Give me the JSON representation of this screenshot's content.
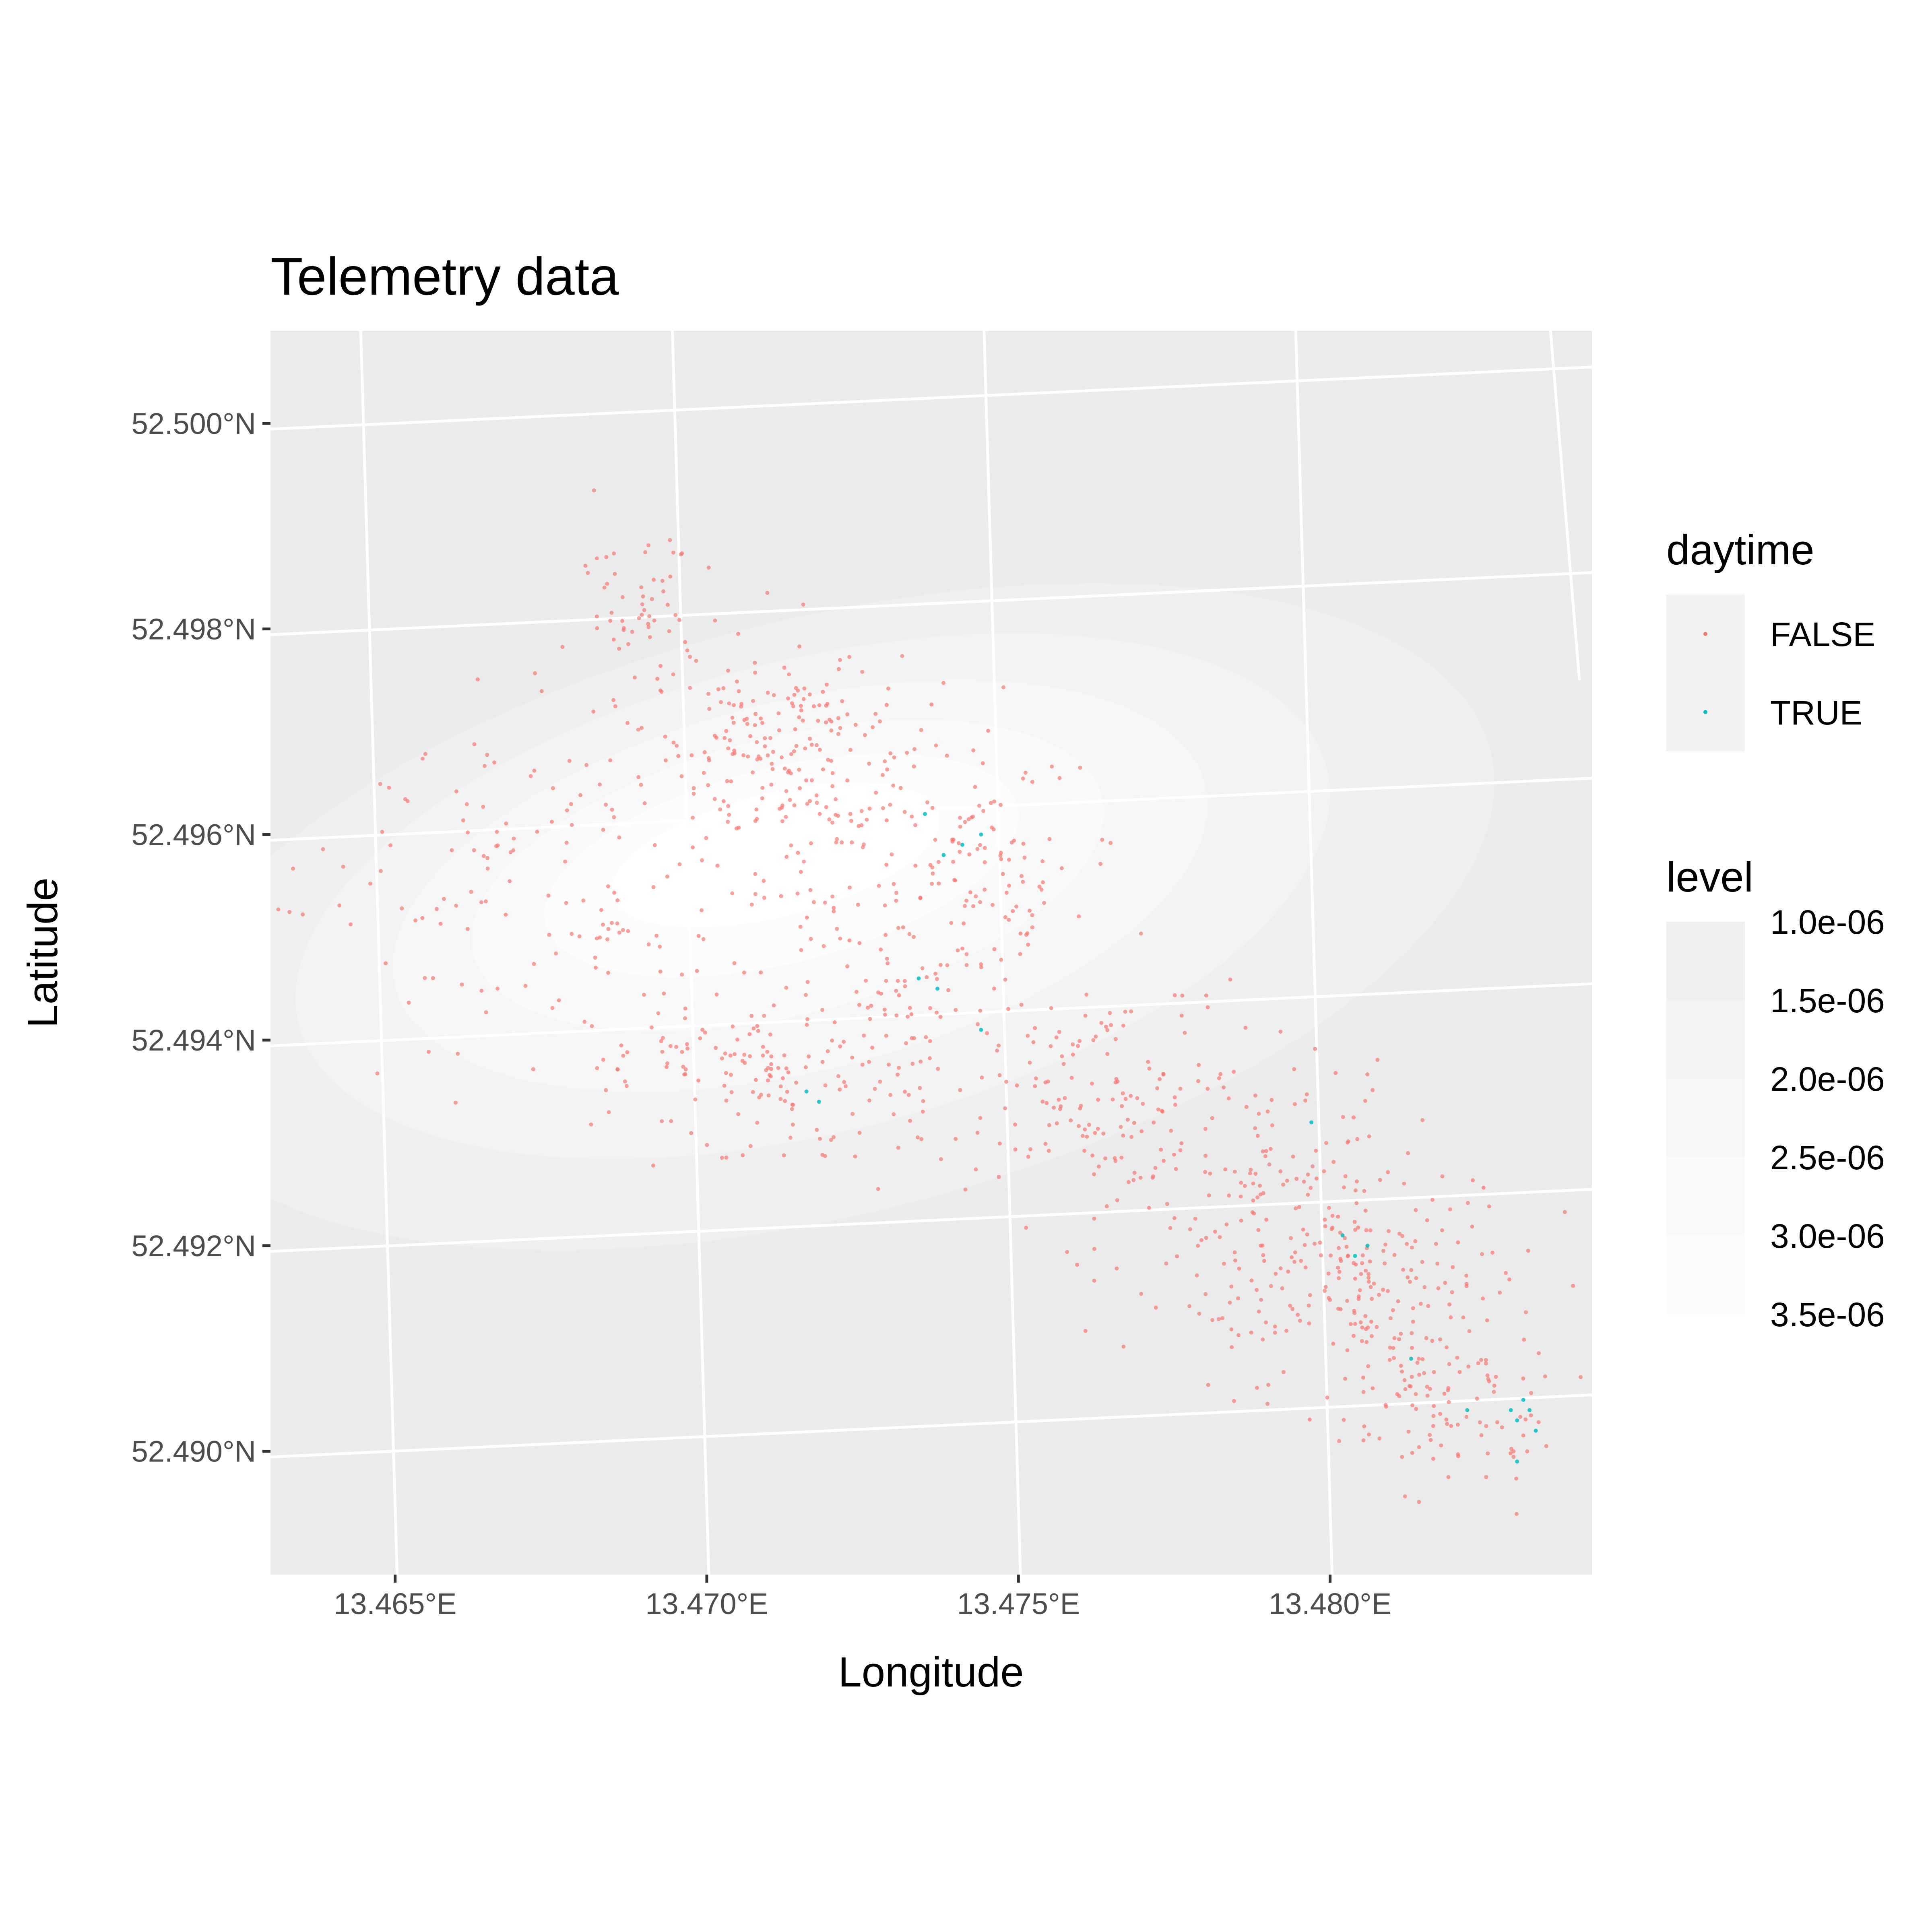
{
  "chart_data": {
    "type": "scatter",
    "title": "Telemetry data",
    "xlabel": "Longitude",
    "ylabel": "Latitude",
    "xlim": [
      13.463,
      13.4842
    ],
    "ylim": [
      52.4888,
      52.5009
    ],
    "x_ticks": [
      {
        "value": 13.465,
        "label": "13.465°E"
      },
      {
        "value": 13.47,
        "label": "13.470°E"
      },
      {
        "value": 13.475,
        "label": "13.475°E"
      },
      {
        "value": 13.48,
        "label": "13.480°E"
      }
    ],
    "y_ticks": [
      {
        "value": 52.5,
        "label": "52.500°N"
      },
      {
        "value": 52.498,
        "label": "52.498°N"
      },
      {
        "value": 52.496,
        "label": "52.496°N"
      },
      {
        "value": 52.494,
        "label": "52.494°N"
      },
      {
        "value": 52.492,
        "label": "52.492°N"
      },
      {
        "value": 52.49,
        "label": "52.490°N"
      }
    ],
    "grid": true,
    "panel_background": "#ebebeb",
    "grid_color": "#ffffff",
    "legends": [
      {
        "title": "daytime",
        "position": "right",
        "entries": [
          {
            "label": "FALSE",
            "color": "#F8766D"
          },
          {
            "label": "TRUE",
            "color": "#00BFC4"
          }
        ]
      },
      {
        "title": "level",
        "position": "right",
        "entries": [
          {
            "label": "1.0e-06",
            "color": "#efefef"
          },
          {
            "label": "1.5e-06",
            "color": "#f3f3f3"
          },
          {
            "label": "2.0e-06",
            "color": "#f6f6f6"
          },
          {
            "label": "2.5e-06",
            "color": "#f9f9f9"
          },
          {
            "label": "3.0e-06",
            "color": "#fcfcfc"
          },
          {
            "label": "3.5e-06",
            "color": "#ffffff"
          }
        ]
      }
    ],
    "density_contours": [
      {
        "level": 1e-06,
        "color": "#efefef",
        "center": [
          13.4719,
          52.4952
        ],
        "rx": 0.011,
        "ry": 0.0029
      },
      {
        "level": 1.5e-06,
        "color": "#f3f3f3",
        "center": [
          13.4717,
          52.4954
        ],
        "rx": 0.0085,
        "ry": 0.0023
      },
      {
        "level": 2e-06,
        "color": "#f6f6f6",
        "center": [
          13.4715,
          52.4955
        ],
        "rx": 0.0067,
        "ry": 0.0018
      },
      {
        "level": 2.5e-06,
        "color": "#f9f9f9",
        "center": [
          13.4713,
          52.4956
        ],
        "rx": 0.0052,
        "ry": 0.00135
      },
      {
        "level": 3e-06,
        "color": "#fcfcfc",
        "center": [
          13.4712,
          52.4957
        ],
        "rx": 0.0039,
        "ry": 0.00095
      },
      {
        "level": 3.5e-06,
        "color": "#ffffff",
        "center": [
          13.4711,
          52.4958
        ],
        "rx": 0.0027,
        "ry": 0.0006
      }
    ],
    "series": [
      {
        "name": "FALSE",
        "color": "#F8766D",
        "clusters": [
          {
            "x": 13.4712,
            "y": 52.4968,
            "sx": 0.001,
            "sy": 0.0005,
            "n": 200
          },
          {
            "x": 13.469,
            "y": 52.4982,
            "sx": 0.0006,
            "sy": 0.00045,
            "n": 60
          },
          {
            "x": 13.468,
            "y": 52.4952,
            "sx": 0.0022,
            "sy": 0.0008,
            "n": 120
          },
          {
            "x": 13.473,
            "y": 52.4945,
            "sx": 0.0012,
            "sy": 0.0009,
            "n": 150
          },
          {
            "x": 13.4745,
            "y": 52.4958,
            "sx": 0.0008,
            "sy": 0.0006,
            "n": 90
          },
          {
            "x": 13.471,
            "y": 52.4937,
            "sx": 0.0015,
            "sy": 0.0004,
            "n": 110
          },
          {
            "x": 13.4765,
            "y": 52.4935,
            "sx": 0.0012,
            "sy": 0.0006,
            "n": 130
          },
          {
            "x": 13.4785,
            "y": 52.4925,
            "sx": 0.0012,
            "sy": 0.0007,
            "n": 130
          },
          {
            "x": 13.48,
            "y": 52.4918,
            "sx": 0.001,
            "sy": 0.0005,
            "n": 90
          },
          {
            "x": 13.4812,
            "y": 52.4914,
            "sx": 0.001,
            "sy": 0.0007,
            "n": 130
          },
          {
            "x": 13.482,
            "y": 52.4905,
            "sx": 0.0008,
            "sy": 0.00045,
            "n": 80
          },
          {
            "x": 13.4667,
            "y": 52.496,
            "sx": 0.0015,
            "sy": 0.0007,
            "n": 50
          }
        ]
      },
      {
        "name": "TRUE",
        "color": "#00BFC4",
        "points": [
          [
            13.4738,
            52.4958
          ],
          [
            13.4741,
            52.4959
          ],
          [
            13.4735,
            52.4962
          ],
          [
            13.4744,
            52.496
          ],
          [
            13.4734,
            52.4946
          ],
          [
            13.4737,
            52.4945
          ],
          [
            13.4744,
            52.4941
          ],
          [
            13.4716,
            52.4935
          ],
          [
            13.4718,
            52.4934
          ],
          [
            13.4797,
            52.4932
          ],
          [
            13.4802,
            52.4921
          ],
          [
            13.4804,
            52.4919
          ],
          [
            13.4806,
            52.492
          ],
          [
            13.4813,
            52.4909
          ],
          [
            13.4822,
            52.4904
          ],
          [
            13.4829,
            52.4904
          ],
          [
            13.483,
            52.4903
          ],
          [
            13.4831,
            52.4905
          ],
          [
            13.4832,
            52.4904
          ],
          [
            13.483,
            52.4899
          ],
          [
            13.4833,
            52.4902
          ]
        ]
      }
    ]
  }
}
